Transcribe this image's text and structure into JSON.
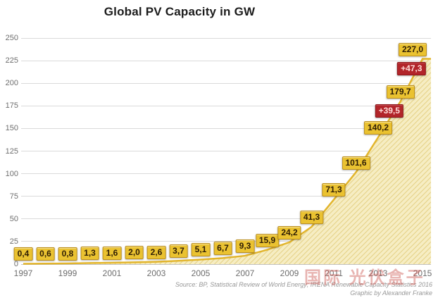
{
  "title": "Global PV Capacity in GW",
  "chart_data": {
    "type": "area",
    "title": "Global PV Capacity in GW",
    "unit": "GW",
    "years": [
      1997,
      1998,
      1999,
      2000,
      2001,
      2002,
      2003,
      2004,
      2005,
      2006,
      2007,
      2008,
      2009,
      2010,
      2011,
      2012,
      2013,
      2014,
      2015
    ],
    "values": [
      0.4,
      0.6,
      0.8,
      1.3,
      1.6,
      2.0,
      2.6,
      3.7,
      5.1,
      6.7,
      9.3,
      15.9,
      24.2,
      41.3,
      71.3,
      101.6,
      140.2,
      179.7,
      227.0
    ],
    "value_labels": [
      "0,4",
      "0,6",
      "0,8",
      "1,3",
      "1,6",
      "2,0",
      "2,6",
      "3,7",
      "5,1",
      "6,7",
      "9,3",
      "15,9",
      "24,2",
      "41,3",
      "71,3",
      "101,6",
      "140,2",
      "179,7",
      "227,0"
    ],
    "increments": [
      {
        "year": 2014,
        "label": "+39,5",
        "value": 39.5
      },
      {
        "year": 2015,
        "label": "+47,3",
        "value": 47.3
      }
    ],
    "ylim": [
      0,
      250
    ],
    "yticks": [
      0,
      25,
      50,
      75,
      100,
      125,
      150,
      175,
      200,
      225,
      250
    ],
    "xticks": [
      1997,
      1999,
      2001,
      2003,
      2005,
      2007,
      2009,
      2011,
      2013,
      2015
    ],
    "grid": true,
    "legend": "none",
    "colors": {
      "area_fill": "#f6edc3",
      "area_hatch": "#e4d084",
      "area_edge": "#e2b52d",
      "label_bg": "#eac231",
      "label_border": "#bd901c",
      "label_text": "#2f1e04",
      "increment_bg": "#b2252a",
      "increment_border": "#8c1418",
      "increment_text": "#ffdcd8",
      "grid_color": "#dadada",
      "axis_text": "#6e6e6e"
    }
  },
  "source": {
    "line1": "Source: BP, Statistical Review of World Energy; IRENA Renewable Capacity Statistics 2016",
    "line2": "Graphic by Alexander Franke"
  },
  "watermark": {
    "text": "国际 光伏盒子"
  }
}
